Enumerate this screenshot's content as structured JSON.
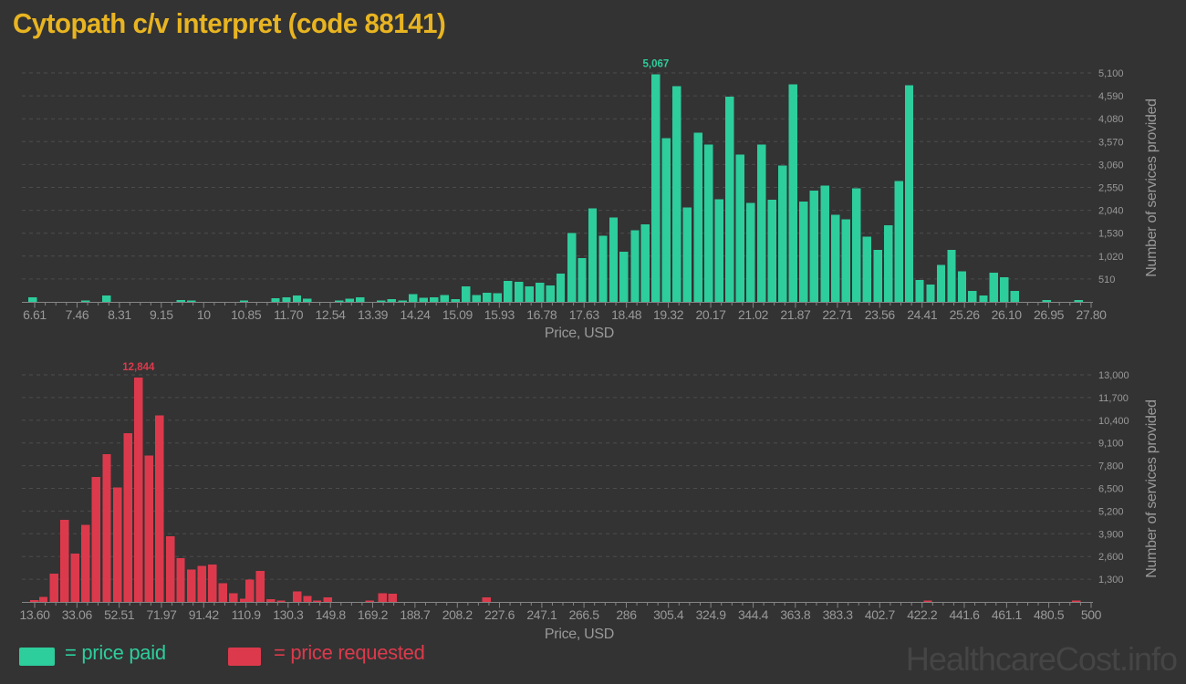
{
  "title": "Cytopath c/v interpret (code 88141)",
  "watermark": "HealthcareCost.info",
  "legend": {
    "paid_label": "= price paid",
    "requested_label": "= price requested"
  },
  "colors": {
    "background": "#333333",
    "title": "#E8B421",
    "paid": "#2DCD9C",
    "requested": "#DC3A4C",
    "grid": "#4C4C4C",
    "axis": "#858585",
    "tick_label": "#999999",
    "axis_title": "#999999",
    "watermark": "#454545"
  },
  "chart_data": [
    {
      "type": "bar",
      "name": "price-paid-histogram",
      "series_name": "price paid",
      "color_key": "paid",
      "xlabel": "Price, USD",
      "ylabel": "Number of services provided",
      "peak_annotation": "5,067",
      "xlim": [
        6.4,
        27.8
      ],
      "ylim": [
        0,
        5100
      ],
      "grid": "dashed-horizontal",
      "legend_position": "bottom",
      "x_tick_labels": [
        "6.61",
        "7.46",
        "8.31",
        "9.15",
        "10",
        "10.85",
        "11.70",
        "12.54",
        "13.39",
        "14.24",
        "15.09",
        "15.93",
        "16.78",
        "17.63",
        "18.48",
        "19.32",
        "20.17",
        "21.02",
        "21.87",
        "22.71",
        "23.56",
        "24.41",
        "25.26",
        "26.10",
        "26.95",
        "27.80"
      ],
      "x_tick_values": [
        6.61,
        7.46,
        8.31,
        9.15,
        10,
        10.85,
        11.7,
        12.54,
        13.39,
        14.24,
        15.09,
        15.93,
        16.78,
        17.63,
        18.48,
        19.32,
        20.17,
        21.02,
        21.87,
        22.71,
        23.56,
        24.41,
        25.26,
        26.1,
        26.95,
        27.8
      ],
      "y_tick_labels": [
        "510",
        "1,020",
        "1,530",
        "2,040",
        "2,550",
        "3,060",
        "3,570",
        "4,080",
        "4,590",
        "5,100"
      ],
      "y_tick_values": [
        510,
        1020,
        1530,
        2040,
        2550,
        3060,
        3570,
        4080,
        4590,
        5100
      ],
      "bars": [
        [
          6.57,
          100
        ],
        [
          7.63,
          30
        ],
        [
          8.05,
          140
        ],
        [
          9.54,
          40
        ],
        [
          9.75,
          30
        ],
        [
          10.81,
          35
        ],
        [
          11.44,
          80
        ],
        [
          11.66,
          100
        ],
        [
          11.87,
          140
        ],
        [
          12.08,
          70
        ],
        [
          12.72,
          30
        ],
        [
          12.93,
          70
        ],
        [
          13.14,
          100
        ],
        [
          13.56,
          30
        ],
        [
          13.77,
          60
        ],
        [
          13.99,
          30
        ],
        [
          14.2,
          170
        ],
        [
          14.41,
          90
        ],
        [
          14.62,
          100
        ],
        [
          14.83,
          150
        ],
        [
          15.05,
          60
        ],
        [
          15.26,
          350
        ],
        [
          15.47,
          150
        ],
        [
          15.68,
          200
        ],
        [
          15.89,
          190
        ],
        [
          16.1,
          470
        ],
        [
          16.32,
          450
        ],
        [
          16.53,
          350
        ],
        [
          16.74,
          430
        ],
        [
          16.95,
          370
        ],
        [
          17.16,
          630
        ],
        [
          17.38,
          1530
        ],
        [
          17.59,
          980
        ],
        [
          17.8,
          2080
        ],
        [
          18.01,
          1470
        ],
        [
          18.22,
          1880
        ],
        [
          18.43,
          1120
        ],
        [
          18.65,
          1590
        ],
        [
          18.86,
          1730
        ],
        [
          19.07,
          5067
        ],
        [
          19.28,
          3650
        ],
        [
          19.49,
          4810
        ],
        [
          19.7,
          2100
        ],
        [
          19.92,
          3770
        ],
        [
          20.13,
          3510
        ],
        [
          20.34,
          2290
        ],
        [
          20.55,
          4570
        ],
        [
          20.76,
          3280
        ],
        [
          20.97,
          2200
        ],
        [
          21.19,
          3510
        ],
        [
          21.4,
          2280
        ],
        [
          21.61,
          3040
        ],
        [
          21.82,
          4850
        ],
        [
          22.03,
          2240
        ],
        [
          22.24,
          2480
        ],
        [
          22.46,
          2590
        ],
        [
          22.67,
          1940
        ],
        [
          22.88,
          1840
        ],
        [
          23.09,
          2530
        ],
        [
          23.3,
          1450
        ],
        [
          23.52,
          1160
        ],
        [
          23.73,
          1710
        ],
        [
          23.94,
          2690
        ],
        [
          24.15,
          4830
        ],
        [
          24.36,
          490
        ],
        [
          24.58,
          390
        ],
        [
          24.79,
          820
        ],
        [
          25.0,
          1160
        ],
        [
          25.21,
          680
        ],
        [
          25.42,
          240
        ],
        [
          25.64,
          140
        ],
        [
          25.85,
          650
        ],
        [
          26.06,
          550
        ],
        [
          26.27,
          240
        ],
        [
          26.91,
          40
        ],
        [
          27.55,
          40
        ]
      ]
    },
    {
      "type": "bar",
      "name": "price-requested-histogram",
      "series_name": "price requested",
      "color_key": "requested",
      "xlabel": "Price, USD",
      "ylabel": "Number of services provided",
      "peak_annotation": "12,844",
      "xlim": [
        9.4,
        500
      ],
      "ylim": [
        0,
        13000
      ],
      "grid": "dashed-horizontal",
      "legend_position": "bottom",
      "x_tick_labels": [
        "13.60",
        "33.06",
        "52.51",
        "71.97",
        "91.42",
        "110.9",
        "130.3",
        "149.8",
        "169.2",
        "188.7",
        "208.2",
        "227.6",
        "247.1",
        "266.5",
        "286",
        "305.4",
        "324.9",
        "344.4",
        "363.8",
        "383.3",
        "402.7",
        "422.2",
        "441.6",
        "461.1",
        "480.5",
        "500"
      ],
      "x_tick_values": [
        13.6,
        33.06,
        52.51,
        71.97,
        91.42,
        110.9,
        130.3,
        149.8,
        169.2,
        188.7,
        208.2,
        227.6,
        247.1,
        266.5,
        286,
        305.4,
        324.9,
        344.4,
        363.8,
        383.3,
        402.7,
        422.2,
        441.6,
        461.1,
        480.5,
        500
      ],
      "y_tick_labels": [
        "1,300",
        "2,600",
        "3,900",
        "5,200",
        "6,500",
        "7,800",
        "9,100",
        "10,400",
        "11,700",
        "13,000"
      ],
      "y_tick_values": [
        1300,
        2600,
        3900,
        5200,
        6500,
        7800,
        9100,
        10400,
        11700,
        13000
      ],
      "bars": [
        [
          13.5,
          100
        ],
        [
          17.6,
          280
        ],
        [
          22.5,
          1630
        ],
        [
          27.3,
          4700
        ],
        [
          32.2,
          2760
        ],
        [
          37.1,
          4400
        ],
        [
          41.9,
          7150
        ],
        [
          46.8,
          8450
        ],
        [
          51.7,
          6550
        ],
        [
          56.5,
          9650
        ],
        [
          61.4,
          12844
        ],
        [
          66.2,
          8380
        ],
        [
          71.1,
          10680
        ],
        [
          76.0,
          3770
        ],
        [
          80.8,
          2500
        ],
        [
          85.7,
          1860
        ],
        [
          90.5,
          2070
        ],
        [
          95.4,
          2150
        ],
        [
          100.2,
          1080
        ],
        [
          105.1,
          490
        ],
        [
          110.0,
          170
        ],
        [
          112.7,
          1290
        ],
        [
          117.5,
          1775
        ],
        [
          122.2,
          150
        ],
        [
          127.0,
          60
        ],
        [
          134.4,
          600
        ],
        [
          139.2,
          350
        ],
        [
          143.6,
          60
        ],
        [
          148.6,
          260
        ],
        [
          167.9,
          80
        ],
        [
          173.8,
          500
        ],
        [
          178.4,
          470
        ],
        [
          221.7,
          260
        ],
        [
          424.8,
          80
        ],
        [
          493.2,
          80
        ]
      ]
    }
  ]
}
